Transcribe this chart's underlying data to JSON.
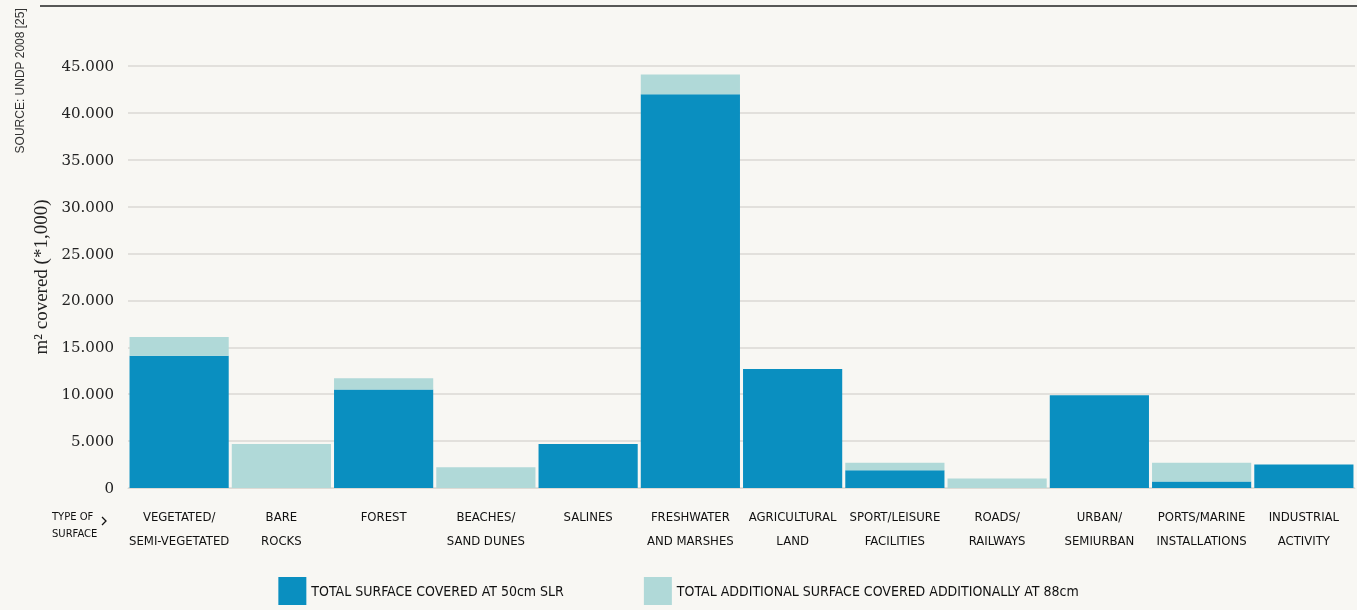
{
  "chart_data": {
    "type": "bar",
    "ylabel": "m² covered (*1,000)",
    "categories": [
      "VEGETATED/\nSEMI-VEGETATED",
      "BARE\nROCKS",
      "FOREST",
      "BEACHES/\nSAND DUNES",
      "SALINES",
      "FRESHWATER\nAND MARSHES",
      "AGRICULTURAL\nLAND",
      "SPORT/LEISURE\nFACILITIES",
      "ROADS/\nRAILWAYS",
      "URBAN/\nSEMIURBAN",
      "PORTS/MARINE\nINSTALLATIONS",
      "INDUSTRIAL\nACTIVITY"
    ],
    "series": [
      {
        "name": "TOTAL SURFACE COVERED AT 50cm SLR",
        "color": "#0a8fc0",
        "values": [
          14100,
          0,
          10500,
          0,
          4700,
          42000,
          12700,
          1900,
          0,
          9900,
          700,
          2500
        ]
      },
      {
        "name": "TOTAL ADDITIONAL SURFACE COVERED ADDITIONALLY AT 88cm",
        "color": "#b0d9d8",
        "values": [
          2000,
          4700,
          1200,
          2200,
          0,
          2100,
          0,
          800,
          1000,
          0,
          2000,
          0
        ]
      }
    ],
    "stacked": true,
    "ylim": [
      0,
      45000
    ],
    "yticks": [
      0,
      {
        "value": 5000,
        "label": "5.000"
      },
      {
        "value": 10000,
        "label": "10.000"
      },
      {
        "value": 15000,
        "label": "15.000"
      },
      {
        "value": 20000,
        "label": "20.000"
      },
      {
        "value": 25000,
        "label": "25.000"
      },
      {
        "value": 30000,
        "label": "30.000"
      },
      {
        "value": 35000,
        "label": "35.000"
      },
      {
        "value": 40000,
        "label": "40.000"
      },
      {
        "value": 45000,
        "label": "45.000"
      }
    ],
    "grid": "y",
    "legend": "bottom",
    "annotations": [
      "SOURCE: UNDP 2008 [25]",
      "TYPE OF\nSURFACE"
    ]
  }
}
